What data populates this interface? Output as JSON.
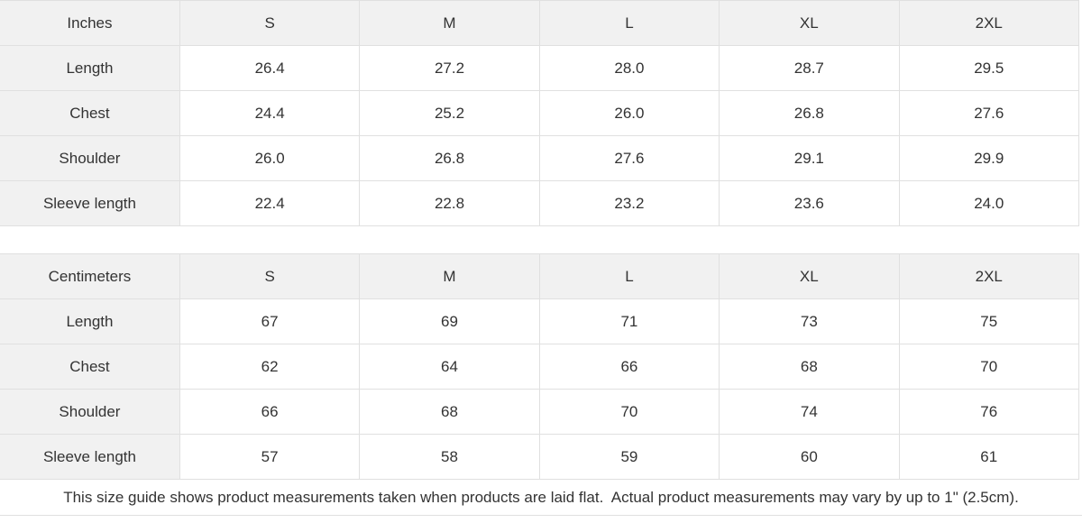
{
  "tables": [
    {
      "unit_label": "Inches",
      "sizes": [
        "S",
        "M",
        "L",
        "XL",
        "2XL"
      ],
      "rows": [
        {
          "label": "Length",
          "values": [
            "26.4",
            "27.2",
            "28.0",
            "28.7",
            "29.5"
          ]
        },
        {
          "label": "Chest",
          "values": [
            "24.4",
            "25.2",
            "26.0",
            "26.8",
            "27.6"
          ]
        },
        {
          "label": "Shoulder",
          "values": [
            "26.0",
            "26.8",
            "27.6",
            "29.1",
            "29.9"
          ]
        },
        {
          "label": "Sleeve length",
          "values": [
            "22.4",
            "22.8",
            "23.2",
            "23.6",
            "24.0"
          ]
        }
      ]
    },
    {
      "unit_label": "Centimeters",
      "sizes": [
        "S",
        "M",
        "L",
        "XL",
        "2XL"
      ],
      "rows": [
        {
          "label": "Length",
          "values": [
            "67",
            "69",
            "71",
            "73",
            "75"
          ]
        },
        {
          "label": "Chest",
          "values": [
            "62",
            "64",
            "66",
            "68",
            "70"
          ]
        },
        {
          "label": "Shoulder",
          "values": [
            "66",
            "68",
            "70",
            "74",
            "76"
          ]
        },
        {
          "label": "Sleeve length",
          "values": [
            "57",
            "58",
            "59",
            "60",
            "61"
          ]
        }
      ]
    }
  ],
  "footer": {
    "note": "This size guide shows product measurements taken when products are laid flat.  Actual product measurements may vary by up to 1\" (2.5cm)."
  },
  "colors": {
    "header_cell_bg": "#f1f1f1",
    "cell_bg": "#ffffff",
    "border": "#e0e0e0",
    "text": "#333333"
  }
}
